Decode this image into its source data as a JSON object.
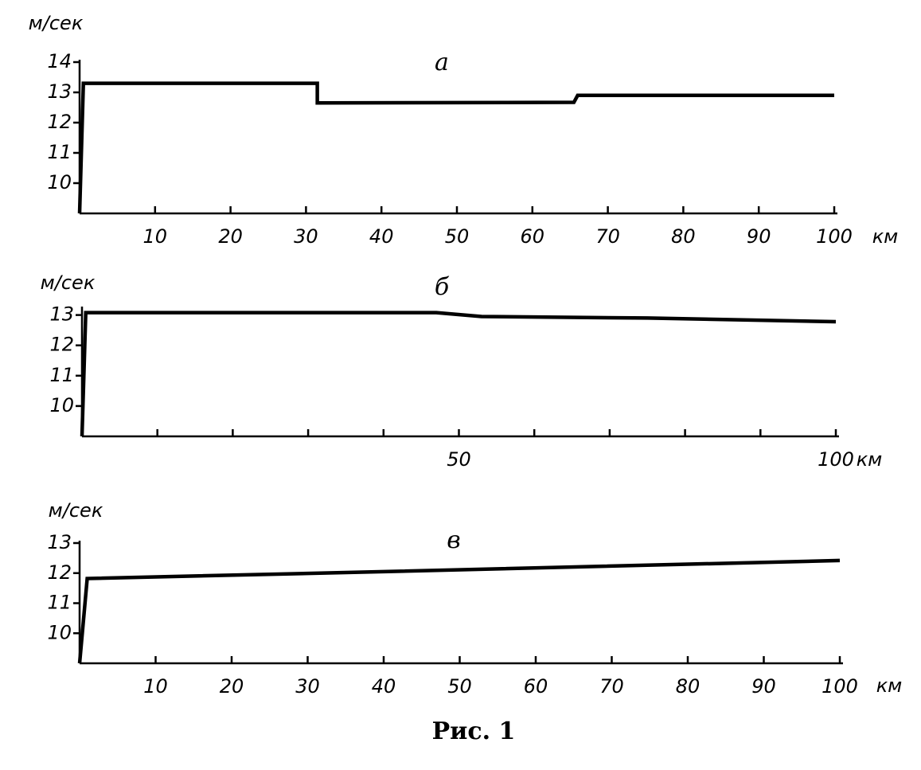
{
  "chart_data": [
    {
      "type": "line",
      "title": "а",
      "ylabel": "м/сек",
      "xlabel": "км",
      "x": [
        0,
        0.5,
        31.5,
        31.5,
        65.5,
        66,
        100
      ],
      "values": [
        9,
        13.3,
        13.3,
        12.65,
        12.67,
        12.9,
        12.9
      ],
      "color": "#000000",
      "xlim": [
        0,
        100
      ],
      "ylim": [
        9,
        14
      ],
      "xticks": [
        10,
        20,
        30,
        40,
        50,
        60,
        70,
        80,
        90,
        100
      ],
      "yticks": [
        10,
        11,
        12,
        13,
        14
      ]
    },
    {
      "type": "line",
      "title": "б",
      "ylabel": "м/сек",
      "xlabel": "км",
      "x": [
        0,
        0.5,
        47,
        53,
        75,
        100
      ],
      "values": [
        9,
        13.08,
        13.08,
        12.95,
        12.9,
        12.78
      ],
      "color": "#000000",
      "xlim": [
        0,
        100
      ],
      "ylim": [
        9,
        13.2
      ],
      "xticks": [
        50,
        100
      ],
      "xminor": [
        10,
        20,
        30,
        40,
        60,
        70,
        80,
        90
      ],
      "yticks": [
        10,
        11,
        12,
        13
      ]
    },
    {
      "type": "line",
      "title": "в",
      "ylabel": "м/сек",
      "xlabel": "км",
      "x": [
        0,
        1,
        40,
        100
      ],
      "values": [
        9,
        11.82,
        12.05,
        12.42
      ],
      "color": "#000000",
      "xlim": [
        0,
        100
      ],
      "ylim": [
        9,
        13
      ],
      "xticks": [
        10,
        20,
        30,
        40,
        50,
        60,
        70,
        80,
        90,
        100
      ],
      "yticks": [
        10,
        11,
        12,
        13
      ]
    }
  ],
  "caption": "Рис. 1"
}
